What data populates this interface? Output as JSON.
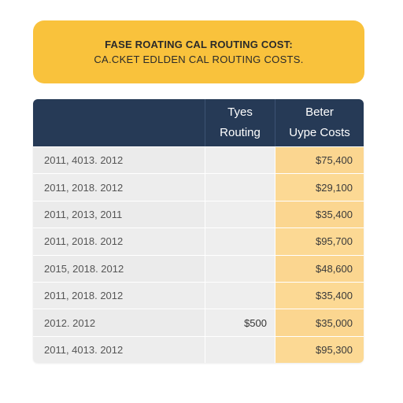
{
  "banner": {
    "title": "FASE ROATING CAL ROUTING COST:",
    "subtitle": "CA.CKET EDLDEN CAL ROUTING COSTS."
  },
  "table": {
    "headers": [
      {
        "line1": "",
        "line2": ""
      },
      {
        "line1": "Tyes",
        "line2": "Routing"
      },
      {
        "line1": "Beter",
        "line2": "Uype Costs"
      }
    ],
    "rows": [
      {
        "label": "2011, 4013. 2012",
        "routing": "",
        "cost": "$75,400"
      },
      {
        "label": "2011, 2018. 2012",
        "routing": "",
        "cost": "$29,100"
      },
      {
        "label": "2011, 2013, 2011",
        "routing": "",
        "cost": "$35,400"
      },
      {
        "label": "2011, 2018. 2012",
        "routing": "",
        "cost": "$95,700"
      },
      {
        "label": "2015, 2018. 2012",
        "routing": "",
        "cost": "$48,600"
      },
      {
        "label": "2011, 2018. 2012",
        "routing": "",
        "cost": "$35,400"
      },
      {
        "label": "2012. 2012",
        "routing": "$500",
        "cost": "$35,000"
      },
      {
        "label": "2011, 4013. 2012",
        "routing": "",
        "cost": "$95,300"
      }
    ]
  },
  "colors": {
    "banner": "#f9c23c",
    "header": "#263a56",
    "highlight_column": "#fbd690",
    "row_background": "#ebebeb"
  }
}
